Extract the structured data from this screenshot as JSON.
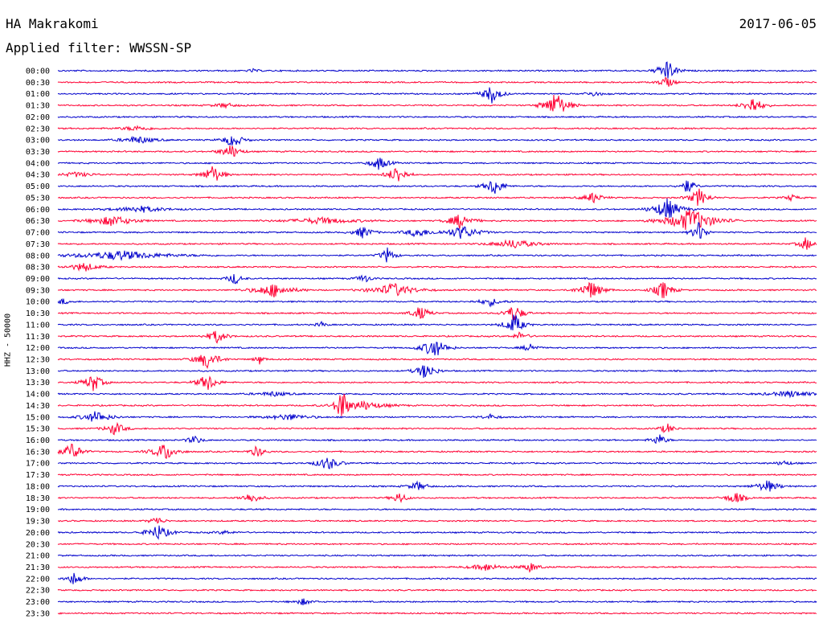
{
  "header": {
    "station": "HA Makrakomi",
    "date": "2017-06-05",
    "filter": "Applied filter: WWSSN-SP"
  },
  "chart_data": {
    "type": "line",
    "title": "HA Makrakomi",
    "ylabel": "HHZ - 50000",
    "colors": [
      "#0000cc",
      "#ff0033"
    ],
    "row_labels": [
      "00:00",
      "00:30",
      "01:00",
      "01:30",
      "02:00",
      "02:30",
      "03:00",
      "03:30",
      "04:00",
      "04:30",
      "05:00",
      "05:30",
      "06:00",
      "06:30",
      "07:00",
      "07:30",
      "08:00",
      "08:30",
      "09:00",
      "09:30",
      "10:00",
      "10:30",
      "11:00",
      "11:30",
      "12:00",
      "12:30",
      "13:00",
      "13:30",
      "14:00",
      "14:30",
      "15:00",
      "15:30",
      "16:00",
      "16:30",
      "17:00",
      "17:30",
      "18:00",
      "18:30",
      "19:00",
      "19:30",
      "20:00",
      "20:30",
      "21:00",
      "21:30",
      "22:00",
      "22:30",
      "23:00",
      "23:30"
    ]
  }
}
